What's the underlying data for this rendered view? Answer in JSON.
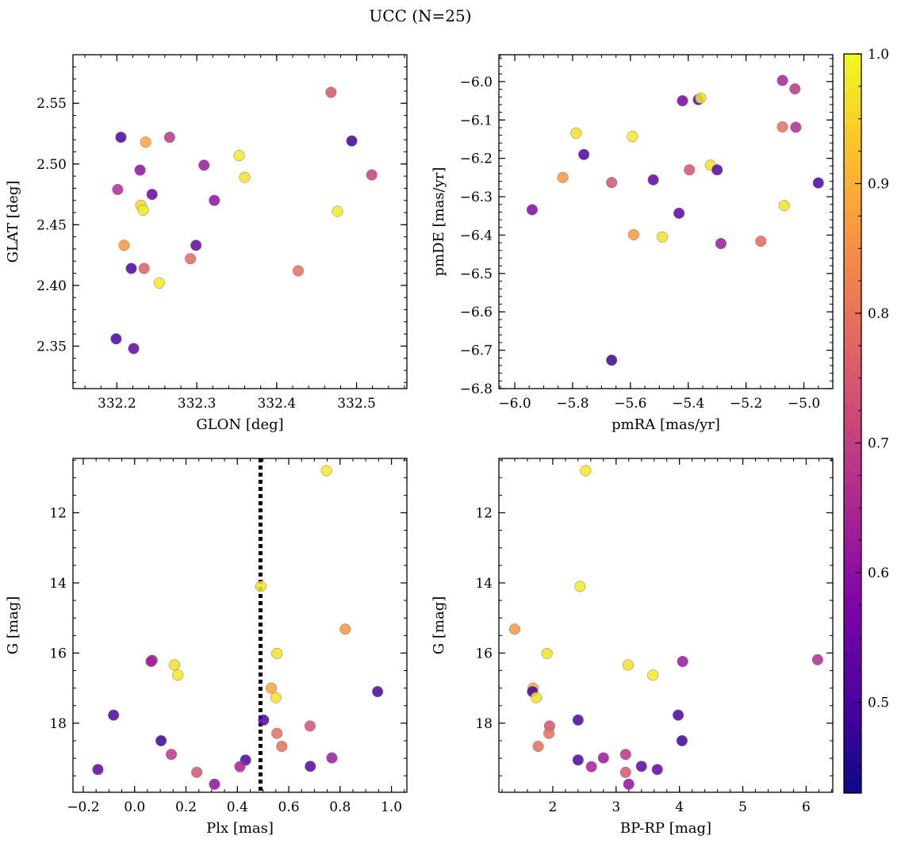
{
  "title": "UCC (N=25)",
  "colormap": "plasma",
  "colorbar": {
    "min": 0.43,
    "max": 1.0,
    "ticks": [
      0.5,
      0.6,
      0.7,
      0.8,
      0.9,
      1.0
    ],
    "tick_labels": [
      "0.5",
      "0.6",
      "0.7",
      "0.8",
      "0.9",
      "1.0"
    ]
  },
  "chart_data": [
    {
      "type": "scatter",
      "id": "glon-glat",
      "xlabel": "GLON [deg]",
      "ylabel": "GLAT [deg]",
      "xlim": [
        332.145,
        332.563
      ],
      "ylim": [
        2.315,
        2.59
      ],
      "xticks": [
        332.2,
        332.3,
        332.4,
        332.5
      ],
      "xtick_labels": [
        "332.2",
        "332.3",
        "332.4",
        "332.5"
      ],
      "yticks": [
        2.35,
        2.4,
        2.45,
        2.5,
        2.55
      ],
      "ytick_labels": [
        "2.35",
        "2.40",
        "2.45",
        "2.50",
        "2.55"
      ],
      "x_minor_step": 0.02,
      "y_minor_step": 0.01,
      "y_inverted": false,
      "points": [
        {
          "x": 332.205,
          "y": 2.522,
          "c": 0.5
        },
        {
          "x": 332.236,
          "y": 2.518,
          "c": 0.88
        },
        {
          "x": 332.266,
          "y": 2.522,
          "c": 0.68
        },
        {
          "x": 332.229,
          "y": 2.495,
          "c": 0.6
        },
        {
          "x": 332.201,
          "y": 2.479,
          "c": 0.66
        },
        {
          "x": 332.244,
          "y": 2.475,
          "c": 0.55
        },
        {
          "x": 332.23,
          "y": 2.466,
          "c": 0.96
        },
        {
          "x": 332.233,
          "y": 2.462,
          "c": 0.98
        },
        {
          "x": 332.209,
          "y": 2.433,
          "c": 0.86
        },
        {
          "x": 332.218,
          "y": 2.414,
          "c": 0.5
        },
        {
          "x": 332.234,
          "y": 2.414,
          "c": 0.76
        },
        {
          "x": 332.253,
          "y": 2.402,
          "c": 0.98
        },
        {
          "x": 332.199,
          "y": 2.356,
          "c": 0.5
        },
        {
          "x": 332.221,
          "y": 2.348,
          "c": 0.53
        },
        {
          "x": 332.309,
          "y": 2.499,
          "c": 0.62
        },
        {
          "x": 332.322,
          "y": 2.47,
          "c": 0.6
        },
        {
          "x": 332.299,
          "y": 2.433,
          "c": 0.53
        },
        {
          "x": 332.292,
          "y": 2.422,
          "c": 0.78
        },
        {
          "x": 332.353,
          "y": 2.507,
          "c": 0.98
        },
        {
          "x": 332.36,
          "y": 2.489,
          "c": 0.97
        },
        {
          "x": 332.427,
          "y": 2.412,
          "c": 0.79
        },
        {
          "x": 332.468,
          "y": 2.559,
          "c": 0.74
        },
        {
          "x": 332.494,
          "y": 2.519,
          "c": 0.48
        },
        {
          "x": 332.476,
          "y": 2.461,
          "c": 0.98
        },
        {
          "x": 332.519,
          "y": 2.491,
          "c": 0.7
        }
      ]
    },
    {
      "type": "scatter",
      "id": "pmra-pmde",
      "xlabel": "pmRA [mas/yr]",
      "ylabel": "pmDE [mas/yr]",
      "xlim": [
        -6.055,
        -4.9
      ],
      "ylim": [
        -6.8,
        -5.93
      ],
      "xticks": [
        -6.0,
        -5.8,
        -5.6,
        -5.4,
        -5.2,
        -5.0
      ],
      "xtick_labels": [
        "−6.0",
        "−5.8",
        "−5.6",
        "−5.4",
        "−5.2",
        "−5.0"
      ],
      "yticks": [
        -6.8,
        -6.7,
        -6.6,
        -6.5,
        -6.4,
        -6.3,
        -6.2,
        -6.1,
        -6.0
      ],
      "ytick_labels": [
        "−6.8",
        "−6.7",
        "−6.6",
        "−6.5",
        "−6.4",
        "−6.3",
        "−6.2",
        "−6.1",
        "−6.0"
      ],
      "x_minor_step": 0.05,
      "y_minor_step": 0.02,
      "y_inverted": false,
      "points": [
        {
          "x": -5.94,
          "y": -6.334,
          "c": 0.58
        },
        {
          "x": -5.834,
          "y": -6.25,
          "c": 0.86
        },
        {
          "x": -5.788,
          "y": -6.134,
          "c": 0.97
        },
        {
          "x": -5.761,
          "y": -6.19,
          "c": 0.5
        },
        {
          "x": -5.665,
          "y": -6.263,
          "c": 0.74
        },
        {
          "x": -5.665,
          "y": -6.726,
          "c": 0.48
        },
        {
          "x": -5.593,
          "y": -6.143,
          "c": 0.98
        },
        {
          "x": -5.589,
          "y": -6.399,
          "c": 0.86
        },
        {
          "x": -5.521,
          "y": -6.256,
          "c": 0.53
        },
        {
          "x": -5.49,
          "y": -6.405,
          "c": 0.97
        },
        {
          "x": -5.432,
          "y": -6.343,
          "c": 0.52
        },
        {
          "x": -5.42,
          "y": -6.05,
          "c": 0.56
        },
        {
          "x": -5.396,
          "y": -6.23,
          "c": 0.74
        },
        {
          "x": -5.365,
          "y": -6.047,
          "c": 0.5
        },
        {
          "x": -5.357,
          "y": -6.043,
          "c": 0.97
        },
        {
          "x": -5.323,
          "y": -6.218,
          "c": 0.97
        },
        {
          "x": -5.3,
          "y": -6.23,
          "c": 0.52
        },
        {
          "x": -5.287,
          "y": -6.422,
          "c": 0.62
        },
        {
          "x": -5.149,
          "y": -6.416,
          "c": 0.78
        },
        {
          "x": -5.074,
          "y": -5.997,
          "c": 0.64
        },
        {
          "x": -5.074,
          "y": -6.118,
          "c": 0.79
        },
        {
          "x": -5.068,
          "y": -6.323,
          "c": 0.97
        },
        {
          "x": -5.031,
          "y": -6.019,
          "c": 0.68
        },
        {
          "x": -5.028,
          "y": -6.119,
          "c": 0.66
        },
        {
          "x": -4.95,
          "y": -6.264,
          "c": 0.5
        }
      ]
    },
    {
      "type": "scatter",
      "id": "plx-g",
      "xlabel": "Plx [mas]",
      "ylabel": "G [mag]",
      "xlim": [
        -0.24,
        1.06
      ],
      "ylim": [
        10.45,
        19.97
      ],
      "xticks": [
        -0.2,
        0.0,
        0.2,
        0.4,
        0.6,
        0.8,
        1.0
      ],
      "xtick_labels": [
        "−0.2",
        "0.0",
        "0.2",
        "0.4",
        "0.6",
        "0.8",
        "1.0"
      ],
      "yticks": [
        12,
        14,
        16,
        18
      ],
      "ytick_labels": [
        "12",
        "14",
        "16",
        "18"
      ],
      "x_minor_step": 0.05,
      "y_minor_step": 0.5,
      "y_inverted": true,
      "vline": {
        "x": 0.49,
        "style": "dotted"
      },
      "points": [
        {
          "x": 0.747,
          "y": 10.8,
          "c": 0.98
        },
        {
          "x": 0.491,
          "y": 14.1,
          "c": 0.98
        },
        {
          "x": 0.82,
          "y": 15.32,
          "c": 0.86
        },
        {
          "x": 0.554,
          "y": 16.01,
          "c": 0.97
        },
        {
          "x": 0.068,
          "y": 16.21,
          "c": 0.62
        },
        {
          "x": 0.064,
          "y": 16.24,
          "c": 0.64
        },
        {
          "x": 0.155,
          "y": 16.34,
          "c": 0.97
        },
        {
          "x": 0.168,
          "y": 16.63,
          "c": 0.98
        },
        {
          "x": 0.532,
          "y": 17.0,
          "c": 0.88
        },
        {
          "x": 0.946,
          "y": 17.1,
          "c": 0.5
        },
        {
          "x": 0.55,
          "y": 17.27,
          "c": 0.97
        },
        {
          "x": -0.082,
          "y": 17.77,
          "c": 0.5
        },
        {
          "x": 0.502,
          "y": 17.91,
          "c": 0.5
        },
        {
          "x": 0.683,
          "y": 18.08,
          "c": 0.74
        },
        {
          "x": 0.554,
          "y": 18.29,
          "c": 0.79
        },
        {
          "x": 0.103,
          "y": 18.5,
          "c": 0.48
        },
        {
          "x": 0.573,
          "y": 18.66,
          "c": 0.79
        },
        {
          "x": 0.143,
          "y": 18.89,
          "c": 0.68
        },
        {
          "x": 0.768,
          "y": 18.99,
          "c": 0.62
        },
        {
          "x": 0.432,
          "y": 19.05,
          "c": 0.5
        },
        {
          "x": 0.41,
          "y": 19.24,
          "c": 0.64
        },
        {
          "x": 0.684,
          "y": 19.23,
          "c": 0.52
        },
        {
          "x": -0.143,
          "y": 19.32,
          "c": 0.53
        },
        {
          "x": 0.242,
          "y": 19.4,
          "c": 0.74
        },
        {
          "x": 0.311,
          "y": 19.74,
          "c": 0.6
        }
      ]
    },
    {
      "type": "scatter",
      "id": "bprp-g",
      "xlabel": "BP-RP [mag]",
      "ylabel": "G [mag]",
      "xlim": [
        1.15,
        6.42
      ],
      "ylim": [
        10.45,
        19.97
      ],
      "xticks": [
        2,
        3,
        4,
        5,
        6
      ],
      "xtick_labels": [
        "2",
        "3",
        "4",
        "5",
        "6"
      ],
      "yticks": [
        12,
        14,
        16,
        18
      ],
      "ytick_labels": [
        "12",
        "14",
        "16",
        "18"
      ],
      "x_minor_step": 0.2,
      "y_minor_step": 0.5,
      "y_inverted": true,
      "points": [
        {
          "x": 2.52,
          "y": 10.8,
          "c": 0.98
        },
        {
          "x": 2.43,
          "y": 14.1,
          "c": 0.98
        },
        {
          "x": 1.4,
          "y": 15.32,
          "c": 0.86
        },
        {
          "x": 1.91,
          "y": 16.01,
          "c": 0.97
        },
        {
          "x": 6.18,
          "y": 16.19,
          "c": 0.66
        },
        {
          "x": 4.05,
          "y": 16.24,
          "c": 0.62
        },
        {
          "x": 3.19,
          "y": 16.34,
          "c": 0.97
        },
        {
          "x": 3.58,
          "y": 16.63,
          "c": 0.98
        },
        {
          "x": 1.69,
          "y": 17.0,
          "c": 0.88
        },
        {
          "x": 1.68,
          "y": 17.1,
          "c": 0.5
        },
        {
          "x": 1.74,
          "y": 17.27,
          "c": 0.97
        },
        {
          "x": 3.98,
          "y": 17.77,
          "c": 0.5
        },
        {
          "x": 2.4,
          "y": 17.91,
          "c": 0.5
        },
        {
          "x": 1.95,
          "y": 18.08,
          "c": 0.74
        },
        {
          "x": 1.94,
          "y": 18.29,
          "c": 0.79
        },
        {
          "x": 4.04,
          "y": 18.5,
          "c": 0.48
        },
        {
          "x": 1.77,
          "y": 18.66,
          "c": 0.79
        },
        {
          "x": 3.15,
          "y": 18.89,
          "c": 0.68
        },
        {
          "x": 2.8,
          "y": 18.99,
          "c": 0.62
        },
        {
          "x": 2.4,
          "y": 19.05,
          "c": 0.5
        },
        {
          "x": 2.61,
          "y": 19.24,
          "c": 0.64
        },
        {
          "x": 3.4,
          "y": 19.23,
          "c": 0.52
        },
        {
          "x": 3.65,
          "y": 19.32,
          "c": 0.53
        },
        {
          "x": 3.15,
          "y": 19.4,
          "c": 0.74
        },
        {
          "x": 3.2,
          "y": 19.74,
          "c": 0.6
        }
      ]
    }
  ]
}
